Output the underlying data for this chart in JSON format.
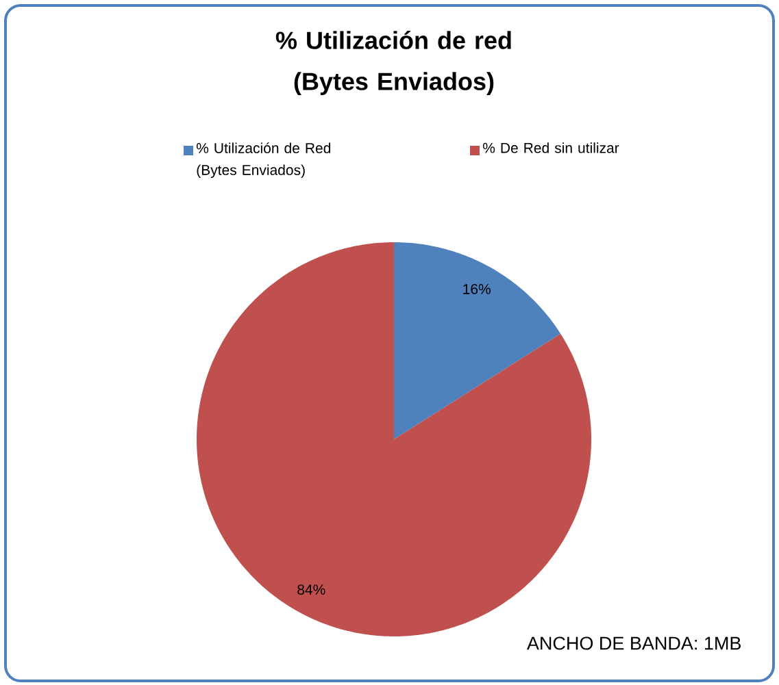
{
  "chart_data": {
    "type": "pie",
    "title": "% Utilización de red (Bytes Enviados)",
    "categories": [
      "% Utilización de Red (Bytes Enviados)",
      "% De Red sin utilizar"
    ],
    "values": [
      16,
      84
    ],
    "colors": [
      "#4f81bd",
      "#c0504d"
    ],
    "value_labels": [
      "16%",
      "84%"
    ],
    "legend": "top",
    "annotations": [
      "ANCHO DE BANDA: 1MB"
    ]
  }
}
